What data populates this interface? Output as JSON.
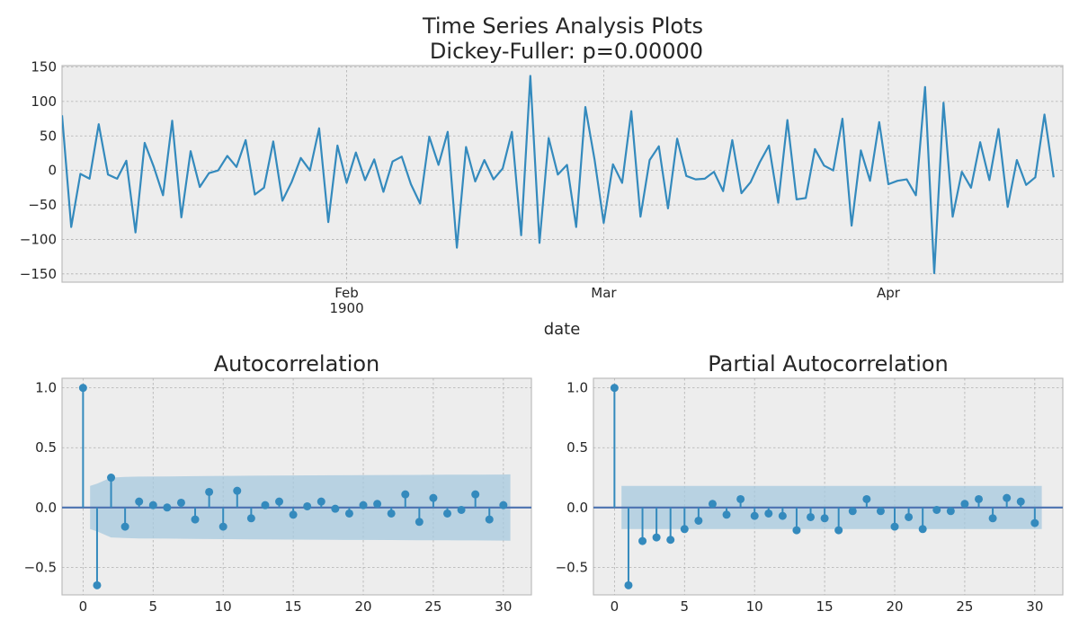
{
  "figure": {
    "title_line1": "Time Series Analysis Plots",
    "title_line2": "Dickey-Fuller: p=0.00000"
  },
  "colors": {
    "series": "#348abd",
    "confidence_band": "#a6c8de",
    "axes_bg": "#ededed",
    "grid": "#b0b0b0"
  },
  "chart_data": [
    {
      "type": "line",
      "xlabel": "date",
      "ylabel": "",
      "ylim": [
        -162,
        152
      ],
      "xlim": [
        "1900-01-01",
        "1900-04-20"
      ],
      "yticks": [
        -150,
        -100,
        -50,
        0,
        50,
        100,
        150
      ],
      "xticks": [
        {
          "date": "1900-02-01",
          "label": "Feb",
          "sublabel": "1900"
        },
        {
          "date": "1900-03-01",
          "label": "Mar",
          "sublabel": ""
        },
        {
          "date": "1900-04-01",
          "label": "Apr",
          "sublabel": ""
        }
      ],
      "grid": true,
      "start_date": "1900-01-01",
      "values": [
        80,
        -82,
        -5,
        -12,
        67,
        -6,
        -12,
        14,
        -90,
        40,
        5,
        -36,
        72,
        -68,
        28,
        -24,
        -4,
        0,
        21,
        5,
        44,
        -35,
        -25,
        42,
        -44,
        -17,
        18,
        0,
        61,
        -75,
        36,
        -18,
        26,
        -14,
        16,
        -31,
        13,
        20,
        -20,
        -48,
        49,
        8,
        56,
        -112,
        34,
        -16,
        15,
        -13,
        3,
        56,
        -94,
        137,
        -105,
        47,
        -6,
        8,
        -82,
        92,
        16,
        -76,
        9,
        -18,
        86,
        -67,
        15,
        35,
        -55,
        46,
        -8,
        -13,
        -12,
        -2,
        -30,
        44,
        -33,
        -17,
        12,
        36,
        -47,
        73,
        -42,
        -40,
        31,
        7,
        0,
        75,
        -80,
        29,
        -15,
        70,
        -20,
        -15,
        -13,
        -36,
        121,
        -149,
        98,
        -67,
        -2,
        -25,
        41,
        -14,
        60,
        -53,
        15,
        -21,
        -10,
        81,
        -10
      ]
    },
    {
      "type": "stem",
      "title": "Autocorrelation",
      "lags": [
        0,
        1,
        2,
        3,
        4,
        5,
        6,
        7,
        8,
        9,
        10,
        11,
        12,
        13,
        14,
        15,
        16,
        17,
        18,
        19,
        20,
        21,
        22,
        23,
        24,
        25,
        26,
        27,
        28,
        29,
        30
      ],
      "values": [
        1.0,
        -0.65,
        0.25,
        -0.16,
        0.05,
        0.02,
        0.0,
        0.04,
        -0.1,
        0.13,
        -0.16,
        0.14,
        -0.09,
        0.02,
        0.05,
        -0.06,
        0.01,
        0.05,
        -0.01,
        -0.05,
        0.02,
        0.03,
        -0.05,
        0.11,
        -0.12,
        0.08,
        -0.05,
        -0.02,
        0.11,
        -0.1,
        0.02
      ],
      "confidence": {
        "lags": [
          0.5,
          1,
          2,
          3,
          4,
          6,
          8,
          10,
          12,
          15,
          18,
          20,
          22,
          24,
          26,
          28,
          30,
          30.5
        ],
        "upper": [
          0.18,
          0.2,
          0.25,
          0.255,
          0.258,
          0.26,
          0.262,
          0.264,
          0.266,
          0.268,
          0.27,
          0.271,
          0.272,
          0.273,
          0.274,
          0.275,
          0.276,
          0.277
        ],
        "lower": [
          -0.18,
          -0.2,
          -0.25,
          -0.255,
          -0.258,
          -0.26,
          -0.262,
          -0.264,
          -0.266,
          -0.268,
          -0.27,
          -0.271,
          -0.272,
          -0.273,
          -0.274,
          -0.275,
          -0.276,
          -0.277
        ]
      },
      "xlim": [
        -1.5,
        32
      ],
      "ylim": [
        -0.73,
        1.08
      ],
      "xticks": [
        0,
        5,
        10,
        15,
        20,
        25,
        30
      ],
      "yticks": [
        -0.5,
        0.0,
        0.5,
        1.0
      ],
      "grid": true
    },
    {
      "type": "stem",
      "title": "Partial Autocorrelation",
      "lags": [
        0,
        1,
        2,
        3,
        4,
        5,
        6,
        7,
        8,
        9,
        10,
        11,
        12,
        13,
        14,
        15,
        16,
        17,
        18,
        19,
        20,
        21,
        22,
        23,
        24,
        25,
        26,
        27,
        28,
        29,
        30
      ],
      "values": [
        1.0,
        -0.65,
        -0.28,
        -0.25,
        -0.27,
        -0.18,
        -0.11,
        0.03,
        -0.06,
        0.07,
        -0.07,
        -0.05,
        -0.07,
        -0.19,
        -0.08,
        -0.09,
        -0.19,
        -0.03,
        0.07,
        -0.03,
        -0.16,
        -0.08,
        -0.18,
        -0.02,
        -0.03,
        0.03,
        0.07,
        -0.09,
        0.08,
        0.05,
        -0.13
      ],
      "confidence": {
        "lags": [
          0.5,
          30.5
        ],
        "upper": [
          0.18,
          0.18
        ],
        "lower": [
          -0.18,
          -0.18
        ]
      },
      "xlim": [
        -1.5,
        32
      ],
      "ylim": [
        -0.73,
        1.08
      ],
      "xticks": [
        0,
        5,
        10,
        15,
        20,
        25,
        30
      ],
      "yticks": [
        -0.5,
        0.0,
        0.5,
        1.0
      ],
      "grid": true
    }
  ]
}
